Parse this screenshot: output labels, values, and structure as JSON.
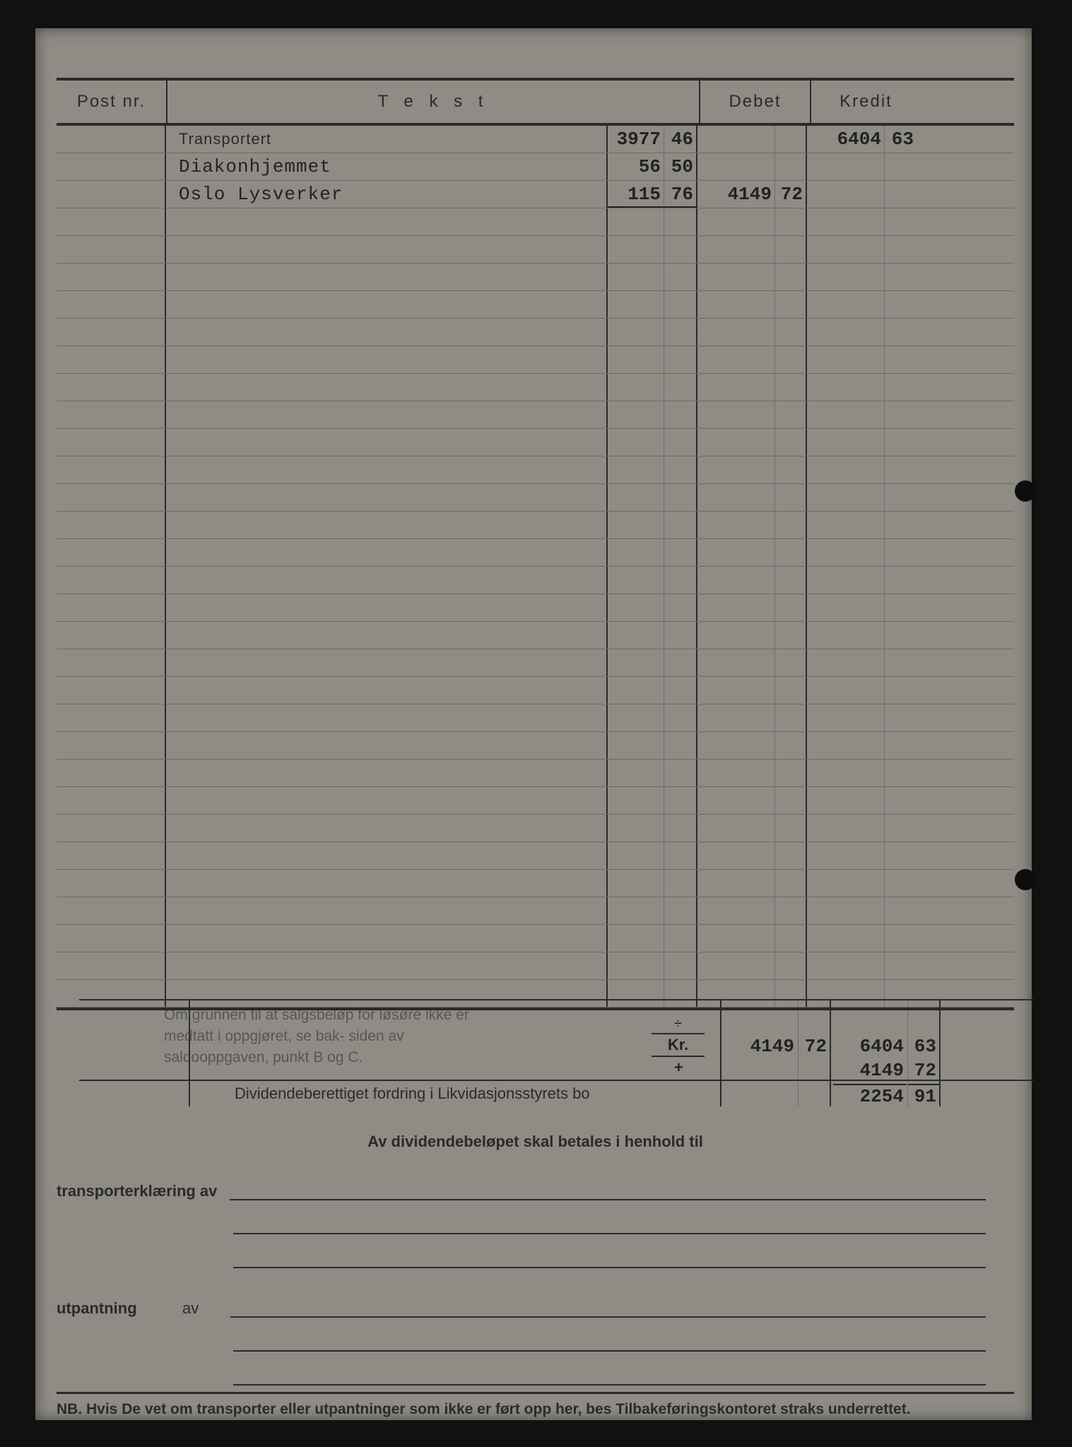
{
  "page": {
    "background_color": "#111111",
    "paper_color": "#8f8c85",
    "ink_color": "#2a2a2a",
    "typed_color": "#222222",
    "font_printed": "Arial",
    "font_typed": "Courier New",
    "header_fontsize_pt": 18,
    "typed_fontsize_pt": 20,
    "note_fontsize_pt": 16
  },
  "columns": {
    "post": "Post nr.",
    "text": "T e k s t",
    "debet": "Debet",
    "kredit": "Kredit"
  },
  "entries": {
    "transport": {
      "label": "Transportert",
      "amount_int": "3977",
      "amount_cent": "46",
      "kredit_int": "6404",
      "kredit_cent": "63"
    },
    "diakon": {
      "label": "Diakonhjemmet",
      "amount_int": "56",
      "amount_cent": "50"
    },
    "lysverker": {
      "label": "Oslo Lysverker",
      "amount_int": "115",
      "amount_cent": "76",
      "debet_int": "4149",
      "debet_cent": "72"
    }
  },
  "empty_row_count": 29,
  "note": {
    "text": "Om grunnen til at salgsbeløp for løsøre ikke er medtatt i oppgjøret, se bak- siden av saldooppgaven, punkt B og C.",
    "kr_label": "Kr.",
    "div_symbol_top": "÷",
    "div_symbol_bot": "+",
    "div_text": "Dividendeberettiget fordring i Likvidasjonsstyrets bo"
  },
  "totals": {
    "debet_int": "4149",
    "debet_cent": "72",
    "kredit1_int": "6404",
    "kredit1_cent": "63",
    "kredit2_int": "4149",
    "kredit2_cent": "72",
    "result_int": "2254",
    "result_cent": "91"
  },
  "footer": {
    "av_dividende": "Av dividendebeløpet skal betales i henhold til",
    "transporterklaering": "transporterklæring av",
    "utpantning": "utpantning",
    "av": "av",
    "nb": "NB.  Hvis De vet om transporter eller utpantninger som ikke er ført opp her, bes Tilbakeføringskontoret straks underrettet."
  }
}
